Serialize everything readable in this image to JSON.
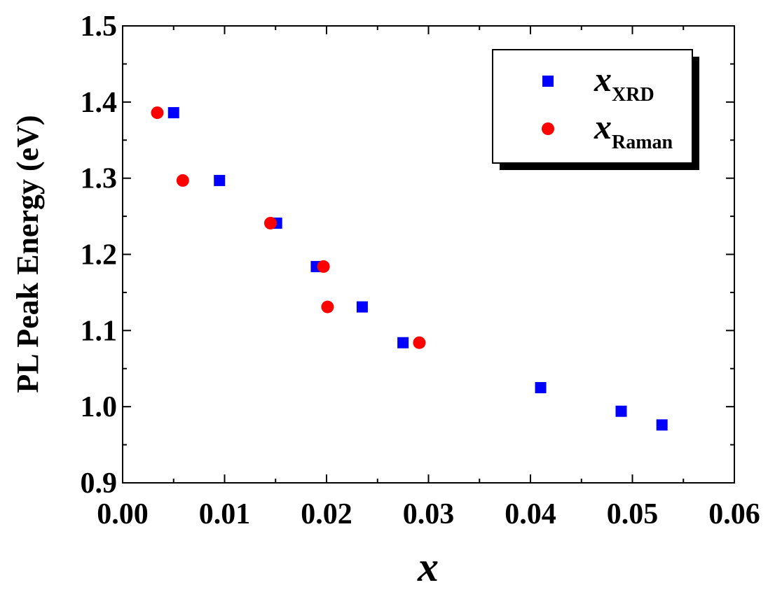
{
  "chart_data": {
    "type": "scatter",
    "x_label": "x",
    "y_label": "PL Peak Energy (eV)",
    "legend_symbol": "x",
    "legend": "upper right",
    "xlim": [
      0,
      0.06
    ],
    "xticks": [
      {
        "value": 0,
        "label": "0.00"
      },
      {
        "value": 0.01,
        "label": "0.01"
      },
      {
        "value": 0.02,
        "label": "0.02"
      },
      {
        "value": 0.03,
        "label": "0.03"
      },
      {
        "value": 0.04,
        "label": "0.04"
      },
      {
        "value": 0.05,
        "label": "0.05"
      },
      {
        "value": 0.06,
        "label": "0.06"
      }
    ],
    "ylim": [
      0.9,
      1.5
    ],
    "yticks": [
      0.9,
      {
        "value": 1.0,
        "label": "1.0"
      },
      1.1,
      1.2,
      1.3,
      1.4,
      1.5
    ],
    "series": [
      {
        "name": "XRD",
        "color": "#0000ff",
        "marker": "square",
        "x": [
          0.005,
          0.0095,
          0.0151,
          0.019,
          0.0235,
          0.0275,
          0.041,
          0.0489,
          0.0529
        ],
        "values": [
          1.386,
          1.297,
          1.241,
          1.184,
          1.131,
          1.084,
          1.025,
          0.994,
          0.976
        ]
      },
      {
        "name": "Raman",
        "color": "#ff0000",
        "marker": "circle",
        "x": [
          0.0034,
          0.0059,
          0.0145,
          0.0197,
          0.0201,
          0.0291
        ],
        "values": [
          1.386,
          1.297,
          1.241,
          1.184,
          1.131,
          1.084
        ]
      }
    ]
  }
}
